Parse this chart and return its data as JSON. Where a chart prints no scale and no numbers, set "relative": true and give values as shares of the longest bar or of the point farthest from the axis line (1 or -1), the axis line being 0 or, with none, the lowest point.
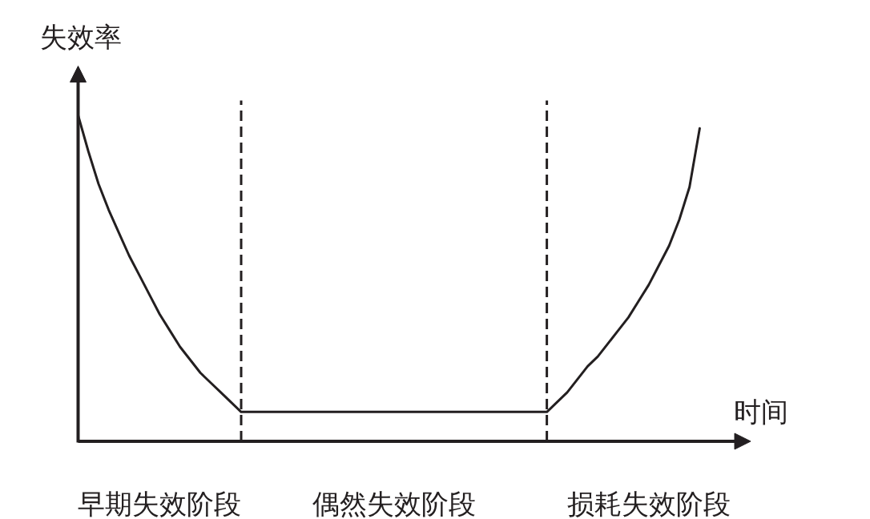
{
  "chart_data": {
    "type": "line",
    "relative": true,
    "xlabel": "时间",
    "ylabel": "失效率",
    "tick_labels": false,
    "grid": false,
    "categories": [
      null,
      null,
      null,
      null,
      null,
      null,
      null,
      null,
      null,
      null,
      null,
      null,
      null,
      null,
      null,
      null,
      null,
      null,
      null,
      null,
      null,
      null,
      null,
      null,
      null,
      null,
      null,
      null,
      null,
      null,
      null,
      null,
      null,
      null,
      null,
      null,
      null,
      null,
      null,
      null,
      null,
      null,
      null,
      null,
      null,
      null,
      null,
      null,
      null,
      null,
      null,
      null,
      null,
      null,
      null,
      null,
      null,
      null,
      null,
      null,
      null,
      null
    ],
    "series": [
      {
        "color": "#231f20",
        "values": [
          1.0,
          0.89,
          0.79,
          0.71,
          0.64,
          0.57,
          0.51,
          0.45,
          0.39,
          0.34,
          0.29,
          0.25,
          0.21,
          0.18,
          0.15,
          0.12,
          0.09,
          0.09,
          0.09,
          0.09,
          0.09,
          0.09,
          0.09,
          0.09,
          0.09,
          0.09,
          0.09,
          0.09,
          0.09,
          0.09,
          0.09,
          0.09,
          0.09,
          0.09,
          0.09,
          0.09,
          0.09,
          0.09,
          0.09,
          0.09,
          0.09,
          0.09,
          0.09,
          0.09,
          0.09,
          0.09,
          0.09,
          0.12,
          0.15,
          0.19,
          0.23,
          0.26,
          0.3,
          0.34,
          0.38,
          0.43,
          0.48,
          0.54,
          0.6,
          0.68,
          0.78,
          0.96
        ]
      }
    ],
    "annotations": [
      "早期失效阶段",
      "偶然失效阶段",
      "损耗失效阶段"
    ]
  }
}
